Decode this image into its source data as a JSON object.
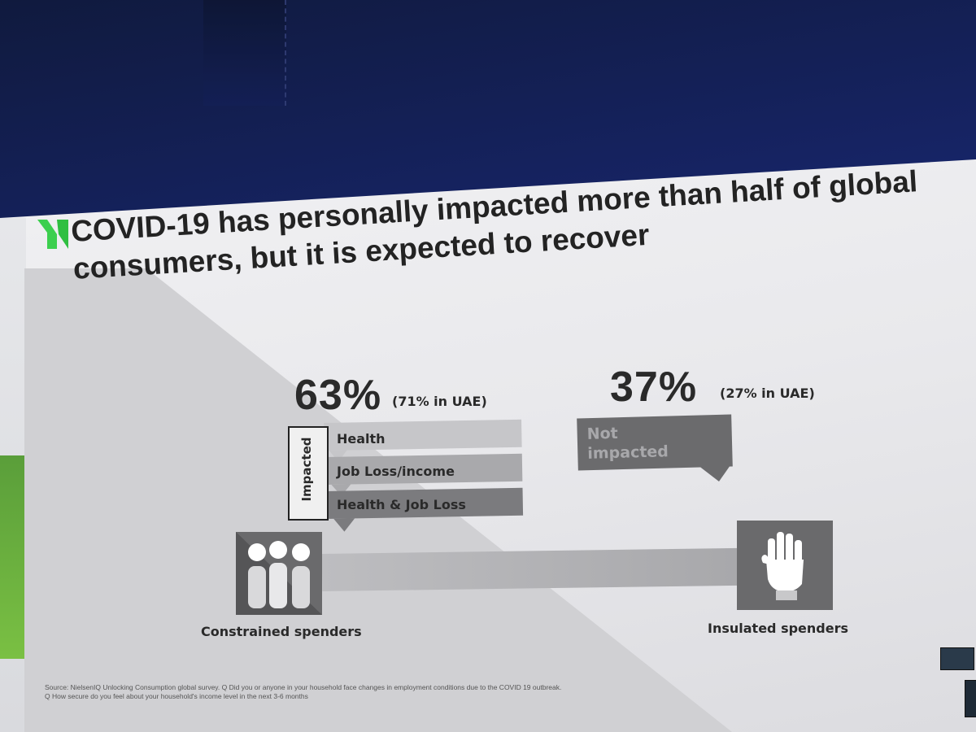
{
  "slide": {
    "title_line1": "COVID-19 has personally impacted more than half of global",
    "title_line2": "consumers, but it is expected to recover",
    "impacted": {
      "percent": "63%",
      "uae_note": "(71% in UAE)",
      "side_label": "Impacted",
      "categories": [
        "Health",
        "Job Loss/income",
        "Health & Job Loss"
      ]
    },
    "not_impacted": {
      "percent": "37%",
      "uae_note": "(27% in UAE)",
      "label_line1": "Not",
      "label_line2": "impacted"
    },
    "left_caption": "Constrained spenders",
    "right_caption": "Insulated spenders",
    "source_line1": "Source: NielsenIQ Unlocking Consumption global survey. Q Did you or anyone in your household face changes in employment conditions due to the COVID 19 outbreak.",
    "source_line2": "Q How secure do you feel about your household's income level in the next 3-6 months"
  },
  "colors": {
    "brand_green": "#3ccf4e",
    "dark_band": "#6e6e70",
    "mid_band": "#a9a9ac",
    "light_band": "#c6c6c9"
  },
  "icons": [
    "nielseniq-logo-icon",
    "people-group-icon",
    "raised-hand-icon"
  ]
}
